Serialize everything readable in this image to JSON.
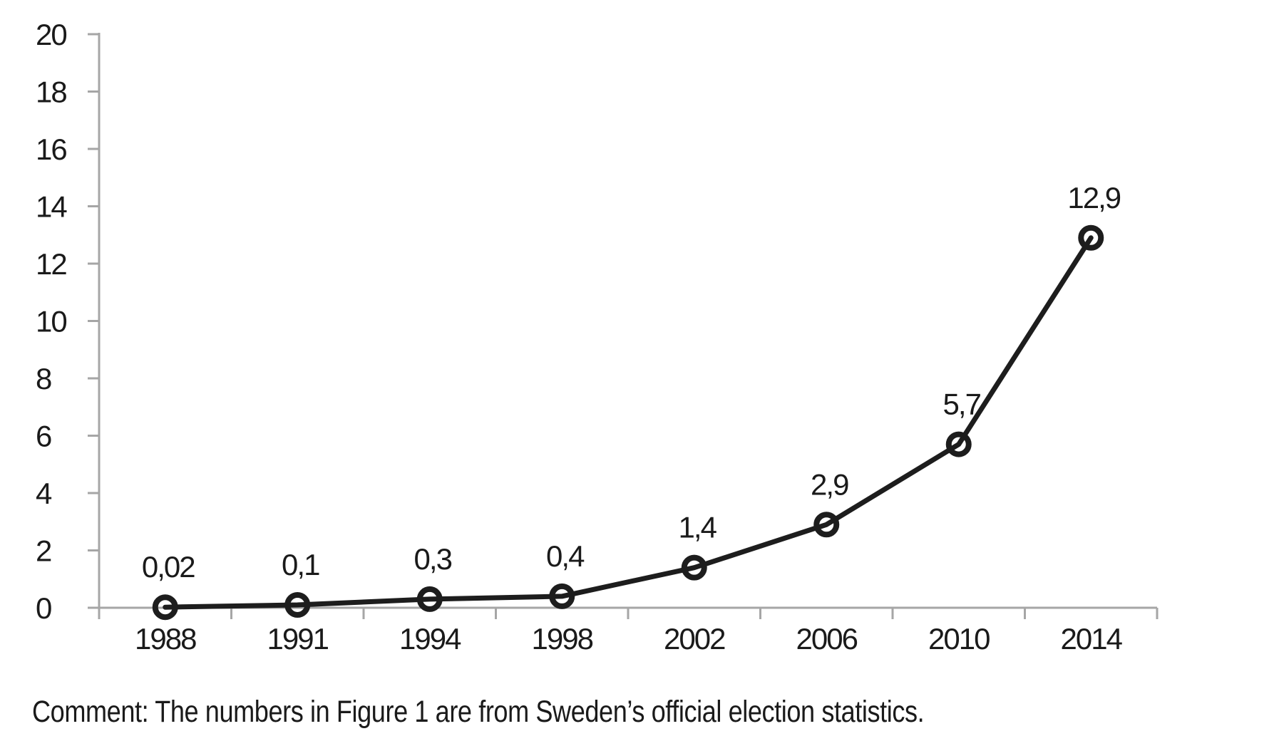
{
  "figure": {
    "comment": "Comment: The numbers in Figure 1 are from Sweden’s official election statistics."
  },
  "colors": {
    "axis": "#a6a6a6",
    "line": "#1d1d1d",
    "text": "#1a1a1a"
  },
  "chart_data": {
    "type": "line",
    "title": "",
    "xlabel": "",
    "ylabel": "",
    "categories": [
      "1988",
      "1991",
      "1994",
      "1998",
      "2002",
      "2006",
      "2010",
      "2014"
    ],
    "values": [
      0.02,
      0.1,
      0.3,
      0.4,
      1.4,
      2.9,
      5.7,
      12.9
    ],
    "point_labels": [
      "0,02",
      "0,1",
      "0,3",
      "0,4",
      "1,4",
      "2,9",
      "5,7",
      "12,9"
    ],
    "ylim": [
      0,
      20
    ],
    "ytick_interval": 2,
    "ytick_labels": [
      "20",
      "18",
      "16",
      "14",
      "12",
      "10",
      "8",
      "6",
      "4",
      "2",
      "0"
    ],
    "grid": false,
    "legend": "none",
    "marker": "open-circle",
    "decimal_separator": ","
  }
}
